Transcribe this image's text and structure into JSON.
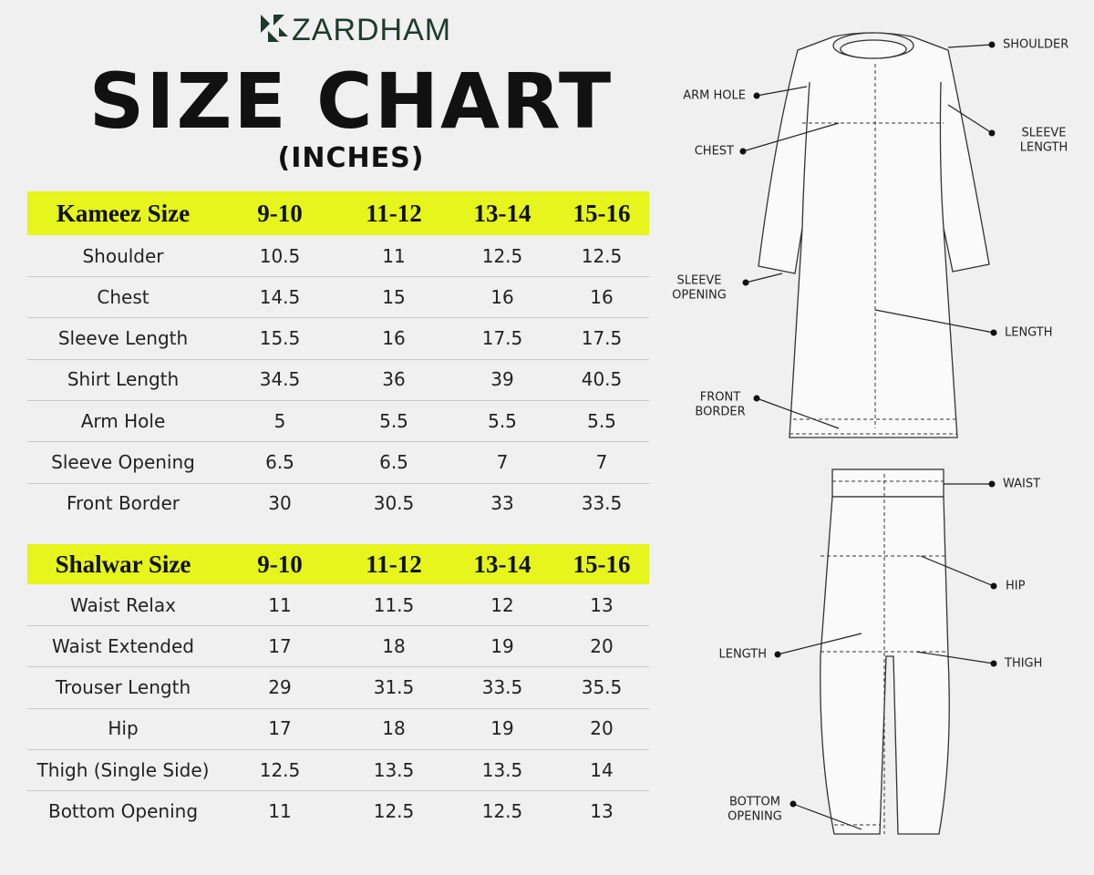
{
  "header": {
    "brand": "ZARDHAM",
    "title": "SIZE CHART",
    "subtitle": "(INCHES)"
  },
  "kameez": {
    "header": [
      "Kameez Size",
      "9-10",
      "11-12",
      "13-14",
      "15-16"
    ],
    "rows": [
      [
        "Shoulder",
        "10.5",
        "11",
        "12.5",
        "12.5"
      ],
      [
        "Chest",
        "14.5",
        "15",
        "16",
        "16"
      ],
      [
        "Sleeve Length",
        "15.5",
        "16",
        "17.5",
        "17.5"
      ],
      [
        "Shirt Length",
        "34.5",
        "36",
        "39",
        "40.5"
      ],
      [
        "Arm Hole",
        "5",
        "5.5",
        "5.5",
        "5.5"
      ],
      [
        "Sleeve Opening",
        "6.5",
        "6.5",
        "7",
        "7"
      ],
      [
        "Front Border",
        "30",
        "30.5",
        "33",
        "33.5"
      ]
    ]
  },
  "shalwar": {
    "header": [
      "Shalwar Size",
      "9-10",
      "11-12",
      "13-14",
      "15-16"
    ],
    "rows": [
      [
        "Waist Relax",
        "11",
        "11.5",
        "12",
        "13"
      ],
      [
        "Waist Extended",
        "17",
        "18",
        "19",
        "20"
      ],
      [
        "Trouser Length",
        "29",
        "31.5",
        "33.5",
        "35.5"
      ],
      [
        "Hip",
        "17",
        "18",
        "19",
        "20"
      ],
      [
        "Thigh (Single Side)",
        "12.5",
        "13.5",
        "13.5",
        "14"
      ],
      [
        "Bottom Opening",
        "11",
        "12.5",
        "12.5",
        "13"
      ]
    ]
  },
  "shirt_labels": [
    {
      "lines": [
        "SHOULDER"
      ]
    },
    {
      "lines": [
        "ARM HOLE"
      ]
    },
    {
      "lines": [
        "SLEEVE",
        "LENGTH"
      ]
    },
    {
      "lines": [
        "CHEST"
      ]
    },
    {
      "lines": [
        "SLEEVE",
        "OPENING"
      ]
    },
    {
      "lines": [
        "LENGTH"
      ]
    },
    {
      "lines": [
        "FRONT",
        "BORDER"
      ]
    }
  ],
  "trouser_labels": [
    {
      "lines": [
        "WAIST"
      ]
    },
    {
      "lines": [
        "HIP"
      ]
    },
    {
      "lines": [
        "LENGTH"
      ]
    },
    {
      "lines": [
        "THIGH"
      ]
    },
    {
      "lines": [
        "BOTTOM",
        "OPENING"
      ]
    }
  ]
}
